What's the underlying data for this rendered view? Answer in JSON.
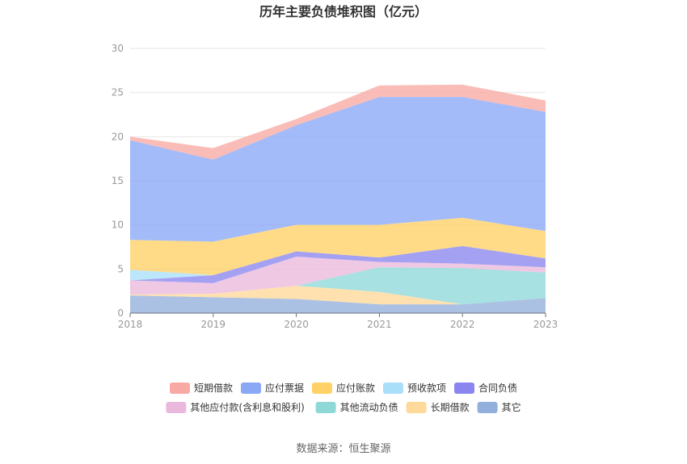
{
  "chart_data": {
    "type": "area",
    "stacked": true,
    "title": "历年主要负债堆积图（亿元）",
    "x": [
      "2018",
      "2019",
      "2020",
      "2021",
      "2022",
      "2023"
    ],
    "ylim": [
      0,
      30
    ],
    "yticks": [
      "0",
      "5",
      "10",
      "15",
      "20",
      "25",
      "30"
    ],
    "grid": true,
    "legend_position": "bottom",
    "series": [
      {
        "name": "其它",
        "color": "#93b0dc",
        "values": [
          2.0,
          1.8,
          1.6,
          1.0,
          1.0,
          1.7
        ]
      },
      {
        "name": "长期借款",
        "color": "#ffd99a",
        "values": [
          0.1,
          0.4,
          1.5,
          1.4,
          0.0,
          0.0
        ]
      },
      {
        "name": "其他流动负债",
        "color": "#8ed8d8",
        "values": [
          0.0,
          0.0,
          0.0,
          2.8,
          4.1,
          2.9
        ]
      },
      {
        "name": "其他应付款(含利息和股利)",
        "color": "#eab8dc",
        "values": [
          1.6,
          1.2,
          3.3,
          0.6,
          0.5,
          0.6
        ]
      },
      {
        "name": "合同负债",
        "color": "#8b86ef",
        "values": [
          0.0,
          0.9,
          0.6,
          0.5,
          2.0,
          1.0
        ]
      },
      {
        "name": "预收款项",
        "color": "#a9dff9",
        "values": [
          1.2,
          0.0,
          0.0,
          0.0,
          0.0,
          0.0
        ]
      },
      {
        "name": "应付账款",
        "color": "#ffd166",
        "values": [
          3.4,
          3.8,
          3.0,
          3.7,
          3.2,
          3.1
        ]
      },
      {
        "name": "应付票据",
        "color": "#8ba8f7",
        "values": [
          11.3,
          9.3,
          11.3,
          14.5,
          13.7,
          13.5
        ]
      },
      {
        "name": "短期借款",
        "color": "#f9a9a3",
        "values": [
          0.4,
          1.3,
          0.7,
          1.3,
          1.4,
          1.3
        ]
      }
    ],
    "legend_order": [
      "短期借款",
      "应付票据",
      "应付账款",
      "预收款项",
      "合同负债",
      "其他应付款(含利息和股利)",
      "其他流动负债",
      "长期借款",
      "其它"
    ]
  },
  "footer": {
    "source": "数据来源：恒生聚源"
  }
}
